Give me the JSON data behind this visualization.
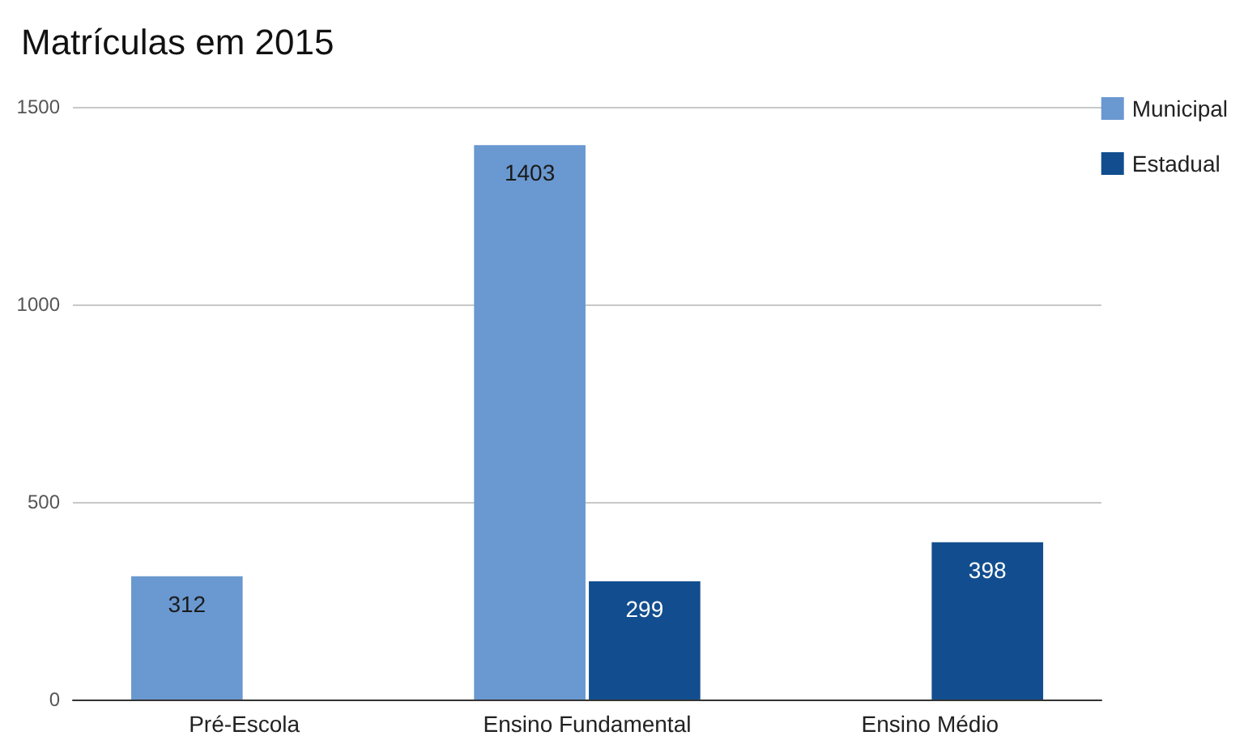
{
  "chart_data": {
    "type": "bar",
    "title": "Matrículas em 2015",
    "categories": [
      "Pré-Escola",
      "Ensino Fundamental",
      "Ensino Médio"
    ],
    "series": [
      {
        "name": "Municipal",
        "color": "#6a98d0",
        "values": [
          312,
          1403,
          null
        ]
      },
      {
        "name": "Estadual",
        "color": "#124e8f",
        "values": [
          null,
          299,
          398
        ]
      }
    ],
    "ylim": [
      0,
      1500
    ],
    "yticks": [
      0,
      500,
      1000,
      1500
    ],
    "grid": "y",
    "legend": "top right",
    "data_labels": true
  }
}
